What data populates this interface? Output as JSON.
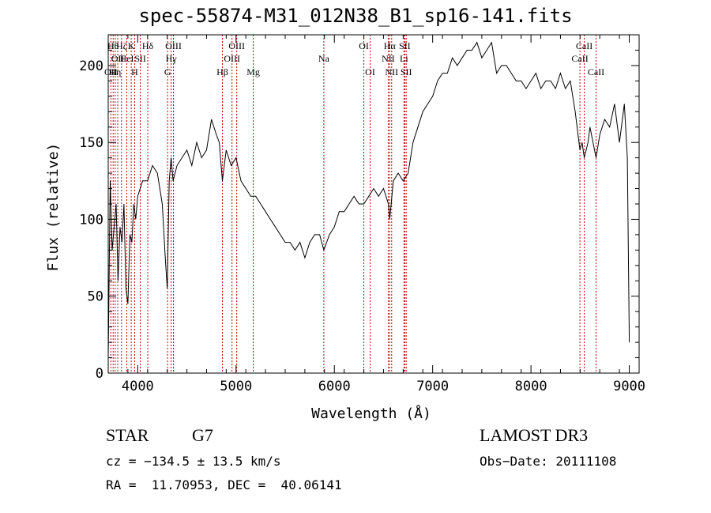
{
  "chart_data": {
    "type": "line",
    "title": "spec-55874-M31_012N38_B1_sp16-141.fits",
    "xlabel": "Wavelength (Å)",
    "ylabel": "Flux (relative)",
    "xlim": [
      3700,
      9100
    ],
    "ylim": [
      0,
      220
    ],
    "xticks": [
      4000,
      5000,
      6000,
      7000,
      8000,
      9000
    ],
    "yticks": [
      0,
      50,
      100,
      150,
      200
    ],
    "grid": false,
    "series": [
      {
        "name": "flux",
        "color": "#000000",
        "x": [
          3700,
          3720,
          3740,
          3760,
          3780,
          3800,
          3820,
          3840,
          3860,
          3880,
          3900,
          3920,
          3940,
          3960,
          3980,
          4000,
          4050,
          4100,
          4150,
          4200,
          4250,
          4280,
          4300,
          4320,
          4340,
          4360,
          4400,
          4450,
          4500,
          4550,
          4600,
          4650,
          4700,
          4750,
          4800,
          4830,
          4861,
          4900,
          4950,
          5000,
          5050,
          5100,
          5150,
          5200,
          5250,
          5300,
          5350,
          5400,
          5450,
          5500,
          5550,
          5600,
          5650,
          5700,
          5750,
          5800,
          5850,
          5893,
          5950,
          6000,
          6050,
          6100,
          6150,
          6200,
          6250,
          6300,
          6350,
          6400,
          6450,
          6500,
          6550,
          6563,
          6600,
          6650,
          6700,
          6750,
          6800,
          6850,
          6900,
          6950,
          7000,
          7050,
          7100,
          7150,
          7200,
          7250,
          7300,
          7350,
          7400,
          7450,
          7500,
          7550,
          7600,
          7650,
          7700,
          7750,
          7800,
          7850,
          7900,
          7950,
          8000,
          8050,
          8100,
          8150,
          8200,
          8250,
          8300,
          8350,
          8400,
          8450,
          8498,
          8520,
          8542,
          8580,
          8600,
          8662,
          8700,
          8750,
          8800,
          8850,
          8900,
          8950,
          8980,
          9000
        ],
        "y": [
          10,
          125,
          80,
          95,
          110,
          60,
          95,
          85,
          110,
          55,
          45,
          90,
          85,
          110,
          100,
          115,
          125,
          125,
          135,
          130,
          110,
          75,
          55,
          125,
          140,
          125,
          135,
          140,
          145,
          135,
          150,
          140,
          145,
          165,
          155,
          150,
          125,
          145,
          135,
          140,
          125,
          120,
          115,
          115,
          110,
          105,
          100,
          95,
          90,
          85,
          85,
          80,
          85,
          75,
          85,
          90,
          90,
          80,
          90,
          95,
          105,
          105,
          110,
          115,
          110,
          110,
          115,
          120,
          115,
          120,
          110,
          100,
          125,
          130,
          125,
          130,
          150,
          160,
          170,
          175,
          180,
          190,
          195,
          195,
          205,
          200,
          205,
          210,
          210,
          215,
          205,
          210,
          215,
          195,
          200,
          200,
          195,
          190,
          190,
          185,
          190,
          195,
          185,
          190,
          190,
          185,
          195,
          185,
          190,
          170,
          145,
          150,
          140,
          150,
          160,
          140,
          155,
          165,
          160,
          175,
          150,
          175,
          140,
          20
        ]
      }
    ],
    "lines": [
      {
        "x": 3727,
        "label": "OII",
        "row": 2
      },
      {
        "x": 3750,
        "label": "Hθ",
        "row": 0
      },
      {
        "x": 3771,
        "label": "Hη",
        "row": 2
      },
      {
        "x": 3797,
        "label": "OII",
        "row": 1
      },
      {
        "x": 3835,
        "label": "Hζ",
        "row": 0
      },
      {
        "x": 3889,
        "label": "HeI",
        "row": 1
      },
      {
        "x": 3934,
        "label": "K",
        "row": 0
      },
      {
        "x": 3969,
        "label": "H",
        "row": 2
      },
      {
        "x": 4026,
        "label": "SII",
        "row": 1
      },
      {
        "x": 4102,
        "label": "Hδ",
        "row": 0
      },
      {
        "x": 4304,
        "label": "G",
        "row": 2
      },
      {
        "x": 4340,
        "label": "Hγ",
        "row": 1
      },
      {
        "x": 4363,
        "label": "OIII",
        "row": 0
      },
      {
        "x": 4861,
        "label": "Hβ",
        "row": 2
      },
      {
        "x": 4959,
        "label": "OIII",
        "row": 1
      },
      {
        "x": 5007,
        "label": "OIII",
        "row": 0
      },
      {
        "x": 5175,
        "label": "Mg",
        "row": 2
      },
      {
        "x": 5893,
        "label": "Na",
        "row": 1
      },
      {
        "x": 6300,
        "label": "OI",
        "row": 0
      },
      {
        "x": 6364,
        "label": "OI",
        "row": 2
      },
      {
        "x": 6548,
        "label": "NII",
        "row": 1
      },
      {
        "x": 6563,
        "label": "Hα",
        "row": 0
      },
      {
        "x": 6583,
        "label": "NII",
        "row": 2
      },
      {
        "x": 6708,
        "label": "Li",
        "row": 1
      },
      {
        "x": 6716,
        "label": "SII",
        "row": 0
      },
      {
        "x": 6731,
        "label": "SII",
        "row": 2
      },
      {
        "x": 8498,
        "label": "CaII",
        "row": 1
      },
      {
        "x": 8542,
        "label": "CaII",
        "row": 0
      },
      {
        "x": 8662,
        "label": "CaII",
        "row": 2
      }
    ]
  },
  "info": {
    "class": "STAR",
    "subclass": "G7",
    "survey": "LAMOST DR3",
    "cz": "cz = −134.5 ± 13.5 km/s",
    "obs_date": "Obs−Date: 20111108",
    "coords": "RA =  11.70953, DEC =  40.06141"
  }
}
